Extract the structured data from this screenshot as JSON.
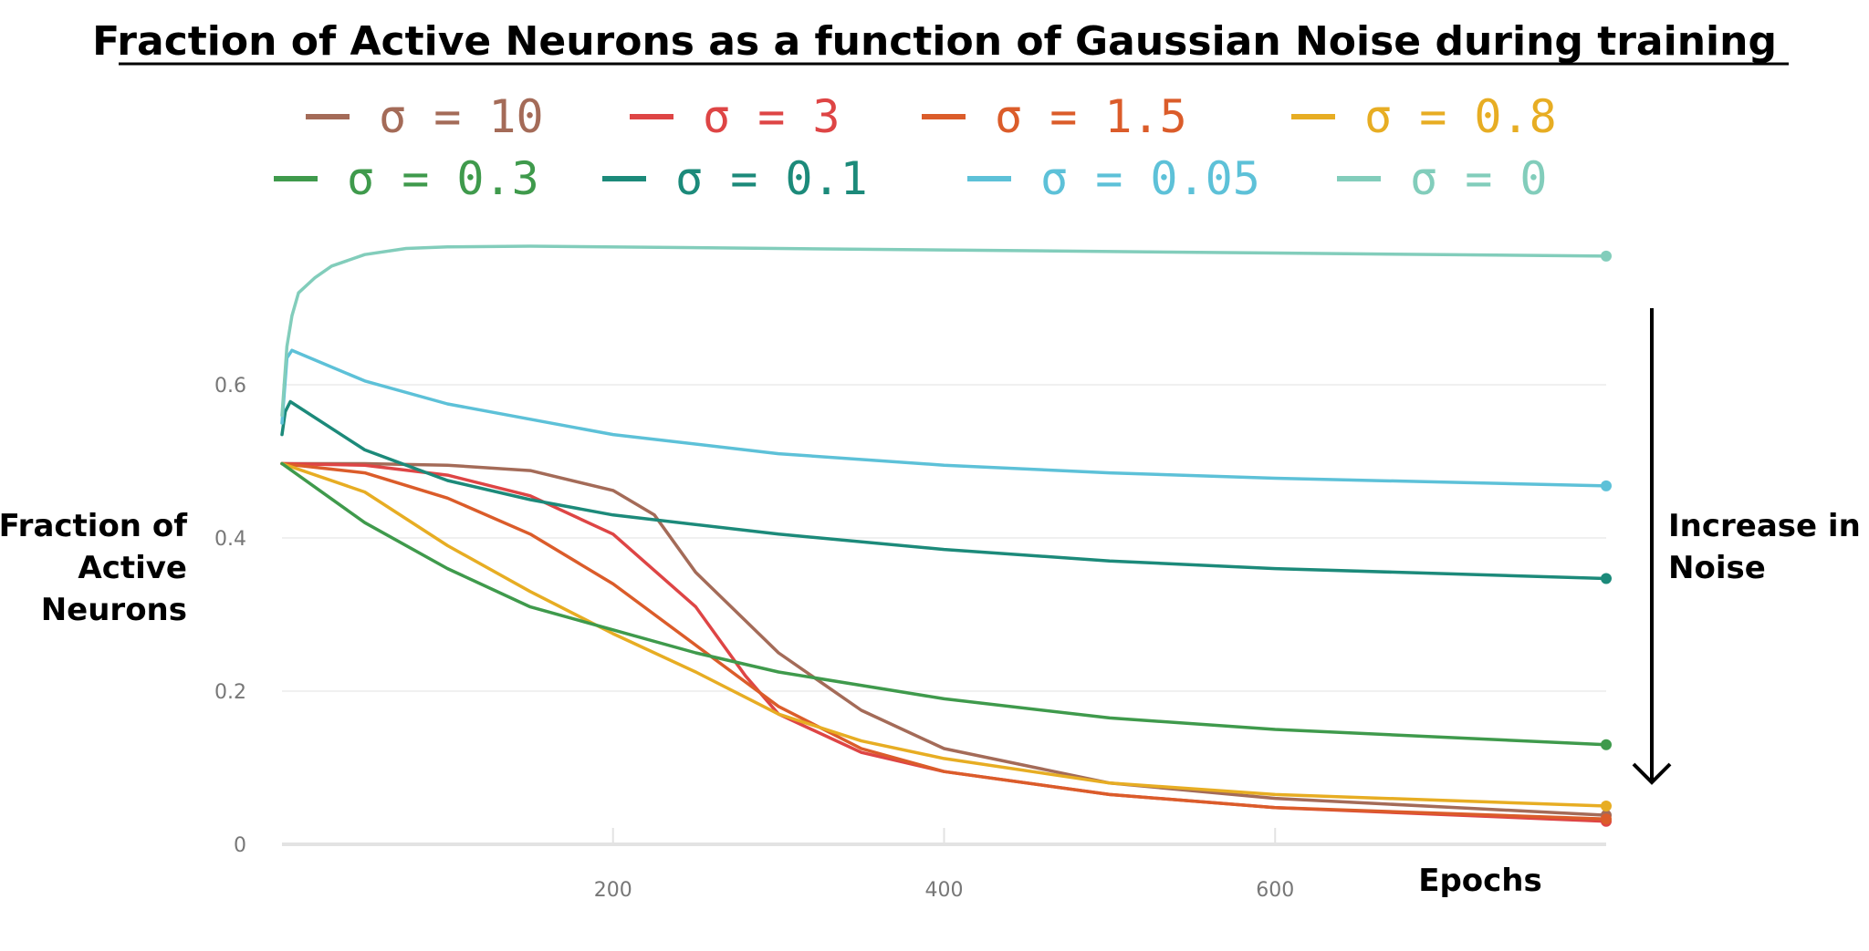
{
  "chart_data": {
    "type": "line",
    "title": "Fraction of Active Neurons as a function of Gaussian Noise during training",
    "xlabel": "Epochs",
    "ylabel": [
      "Fraction of",
      "Active",
      "Neurons"
    ],
    "annotation": [
      "Increase in",
      "Noise"
    ],
    "xlim": [
      0,
      800
    ],
    "ylim": [
      0,
      0.8
    ],
    "x_ticks": [
      200,
      400,
      600
    ],
    "y_ticks": [
      {
        "value": 0,
        "label": "0"
      },
      {
        "value": 0.2,
        "label": "0.2"
      },
      {
        "value": 0.4,
        "label": "0.4"
      },
      {
        "value": 0.6,
        "label": "0.6"
      }
    ],
    "grid": "horizontal",
    "legend": "top",
    "series": [
      {
        "name": "σ = 10",
        "color": "#a46b58",
        "x": [
          0,
          50,
          100,
          150,
          200,
          225,
          250,
          300,
          350,
          400,
          500,
          600,
          800
        ],
        "y": [
          0.497,
          0.497,
          0.495,
          0.488,
          0.462,
          0.43,
          0.355,
          0.25,
          0.175,
          0.125,
          0.08,
          0.06,
          0.038
        ]
      },
      {
        "name": "σ = 3",
        "color": "#de4545",
        "x": [
          0,
          50,
          100,
          150,
          200,
          250,
          280,
          300,
          350,
          400,
          500,
          600,
          800
        ],
        "y": [
          0.497,
          0.495,
          0.482,
          0.455,
          0.405,
          0.31,
          0.22,
          0.17,
          0.12,
          0.095,
          0.065,
          0.048,
          0.03
        ]
      },
      {
        "name": "σ = 1.5",
        "color": "#db5c2a",
        "x": [
          0,
          50,
          100,
          150,
          200,
          250,
          300,
          350,
          400,
          500,
          600,
          800
        ],
        "y": [
          0.497,
          0.485,
          0.452,
          0.405,
          0.34,
          0.26,
          0.18,
          0.125,
          0.095,
          0.065,
          0.048,
          0.033
        ]
      },
      {
        "name": "σ = 0.8",
        "color": "#e7ad23",
        "x": [
          0,
          50,
          100,
          150,
          200,
          250,
          300,
          350,
          400,
          500,
          600,
          800
        ],
        "y": [
          0.497,
          0.46,
          0.39,
          0.33,
          0.275,
          0.225,
          0.17,
          0.135,
          0.112,
          0.08,
          0.065,
          0.05
        ]
      },
      {
        "name": "σ = 0.3",
        "color": "#3f9a4c",
        "x": [
          0,
          50,
          100,
          150,
          200,
          250,
          300,
          400,
          500,
          600,
          800
        ],
        "y": [
          0.497,
          0.42,
          0.36,
          0.31,
          0.28,
          0.25,
          0.225,
          0.19,
          0.165,
          0.15,
          0.13
        ]
      },
      {
        "name": "σ = 0.1",
        "color": "#1c8a7a",
        "x": [
          0,
          2,
          5,
          50,
          100,
          150,
          200,
          300,
          400,
          500,
          600,
          800
        ],
        "y": [
          0.535,
          0.565,
          0.578,
          0.515,
          0.475,
          0.45,
          0.43,
          0.405,
          0.385,
          0.37,
          0.36,
          0.347
        ]
      },
      {
        "name": "σ = 0.05",
        "color": "#5dc1d8",
        "x": [
          0,
          3,
          6,
          50,
          100,
          200,
          300,
          400,
          500,
          600,
          800
        ],
        "y": [
          0.55,
          0.635,
          0.645,
          0.605,
          0.575,
          0.535,
          0.51,
          0.495,
          0.485,
          0.478,
          0.468
        ]
      },
      {
        "name": "σ = 0",
        "color": "#82cdbb",
        "x": [
          0,
          3,
          6,
          10,
          20,
          30,
          50,
          75,
          100,
          150,
          300,
          600,
          800
        ],
        "y": [
          0.56,
          0.65,
          0.69,
          0.72,
          0.74,
          0.755,
          0.77,
          0.778,
          0.78,
          0.781,
          0.778,
          0.772,
          0.768
        ]
      }
    ]
  }
}
